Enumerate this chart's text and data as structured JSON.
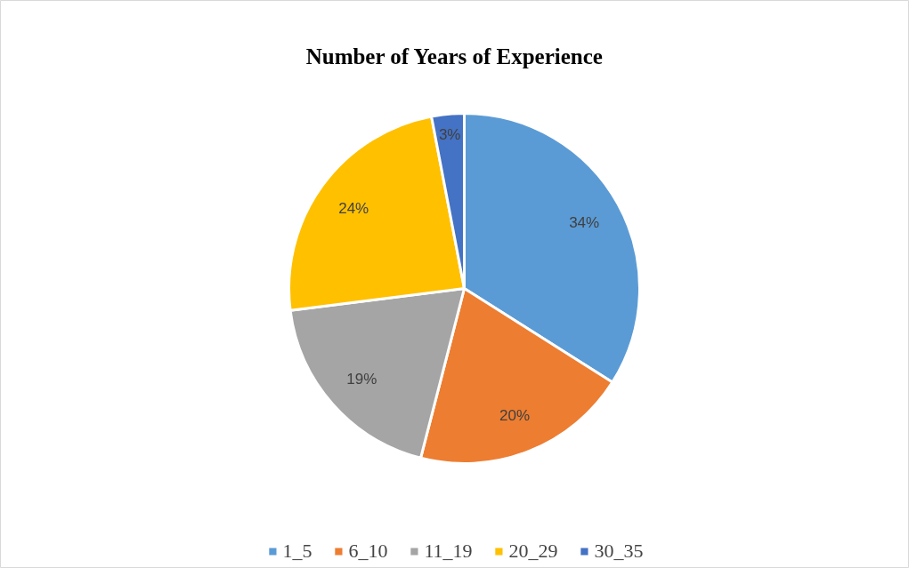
{
  "chart_data": {
    "type": "pie",
    "title": "Number of Years of Experience",
    "categories": [
      "1_5",
      "6_10",
      "11_19",
      "20_29",
      "30_35"
    ],
    "values": [
      34,
      20,
      19,
      24,
      3
    ],
    "colors": [
      "#5b9bd5",
      "#ed7d31",
      "#a5a5a5",
      "#ffc000",
      "#4472c4"
    ],
    "value_labels": [
      "34%",
      "20%",
      "19%",
      "24%",
      "3%"
    ],
    "legend": "bottom"
  }
}
